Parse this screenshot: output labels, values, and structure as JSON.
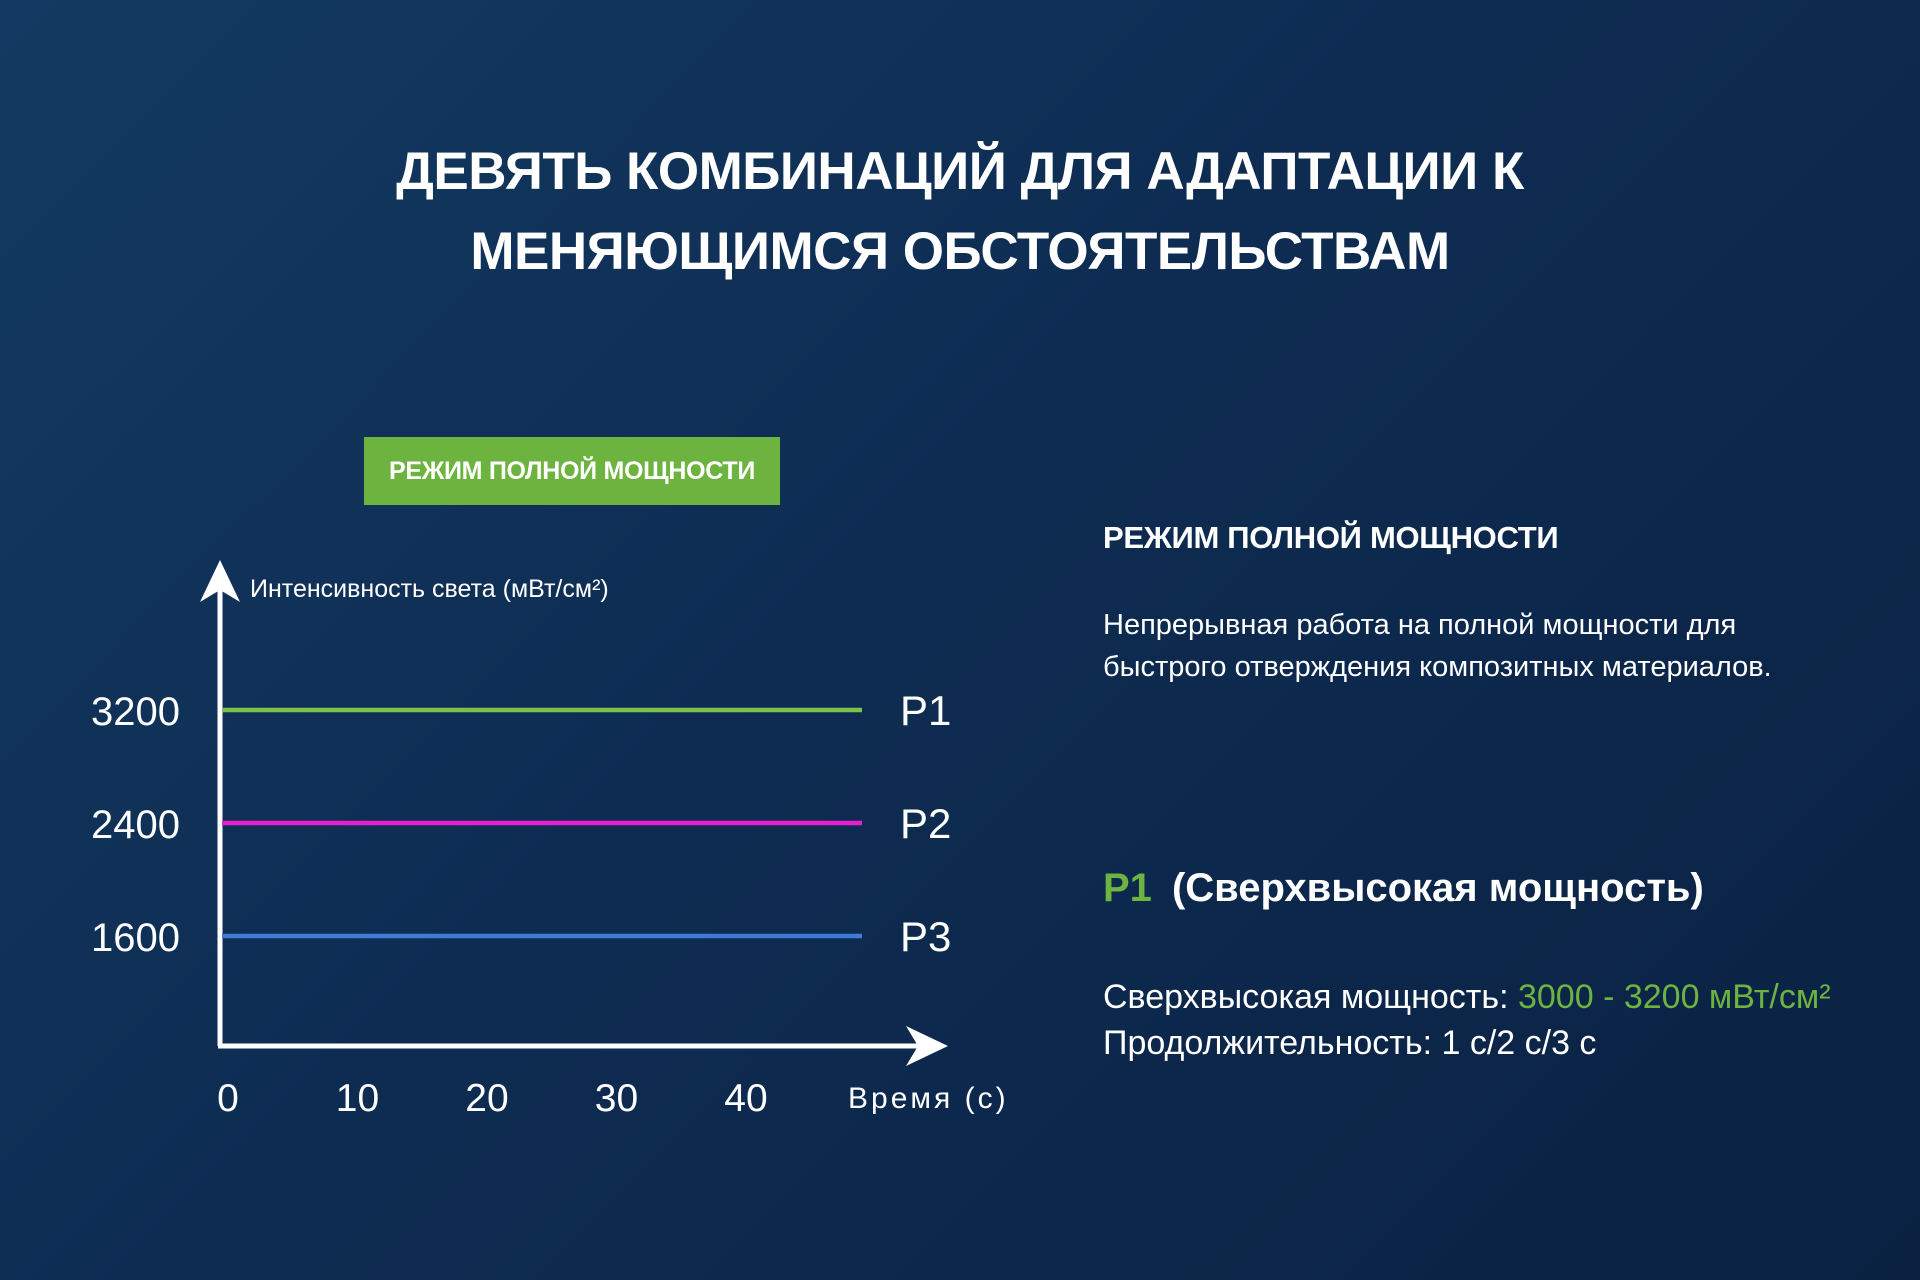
{
  "title_line1": "ДЕВЯТЬ КОМБИНАЦИЙ ДЛЯ АДАПТАЦИИ К",
  "title_line2": "МЕНЯЮЩИМСЯ ОБСТОЯТЕЛЬСТВАМ",
  "mode_badge": "РЕЖИМ ПОЛНОЙ МОЩНОСТИ",
  "colors": {
    "accent_green": "#6cb33f",
    "p1": "#7cc24a",
    "p2": "#e81fd0",
    "p3": "#3f7ad9"
  },
  "chart_data": {
    "type": "line",
    "ylabel": "Интенсивность света (мВт/см²)",
    "xlabel": "Время (с)",
    "x_ticks": [
      "0",
      "10",
      "20",
      "30",
      "40"
    ],
    "y_ticks": [
      "1600",
      "2400",
      "3200"
    ],
    "xlim": [
      0,
      50
    ],
    "series": [
      {
        "name": "P1",
        "y": 3200,
        "color": "#7cc24a"
      },
      {
        "name": "P2",
        "y": 2400,
        "color": "#e81fd0"
      },
      {
        "name": "P3",
        "y": 1600,
        "color": "#3f7ad9"
      }
    ]
  },
  "right": {
    "heading": "РЕЖИМ ПОЛНОЙ МОЩНОСТИ",
    "description": "Непрерывная работа на полной мощности для быстрого отверждения композитных материалов.",
    "sub_p": "P1",
    "sub_label": "(Сверхвысокая мощность)",
    "spec1_label": "Сверхвысокая мощность: ",
    "spec1_value": "3000 - 3200 мВт/см²",
    "spec2": "Продолжительность: 1 с/2 с/3 с"
  }
}
